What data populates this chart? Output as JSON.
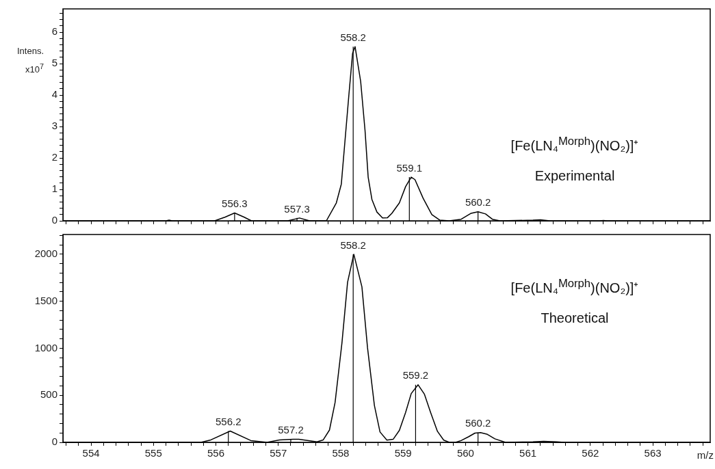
{
  "chart_data": [
    {
      "type": "line",
      "ylabel": "Intens. x10$^{7}$",
      "marker": "none",
      "line_style": "solid",
      "tick_labels": "y",
      "x": [
        553.55,
        555.2,
        555.25,
        555.3,
        555.98,
        556.15,
        556.3,
        556.45,
        556.57,
        557.15,
        557.34,
        557.5,
        557.77,
        557.93,
        558.01,
        558.13,
        558.19,
        558.23,
        558.32,
        558.39,
        558.44,
        558.5,
        558.58,
        558.67,
        558.75,
        558.82,
        558.94,
        559.04,
        559.13,
        559.19,
        559.32,
        559.46,
        559.59,
        559.74,
        559.93,
        560.09,
        560.2,
        560.32,
        560.43,
        560.55,
        561.08,
        561.2,
        561.35,
        562.15,
        562.21,
        562.27,
        563.92
      ],
      "series": [
        {
          "color": "#000000",
          "values": [
            0,
            0,
            0.02,
            0,
            0,
            0.12,
            0.25,
            0.12,
            0,
            0,
            0.09,
            0,
            0,
            0.57,
            1.17,
            3.98,
            5.32,
            5.54,
            4.43,
            2.87,
            1.39,
            0.68,
            0.28,
            0.09,
            0.1,
            0.24,
            0.57,
            1.09,
            1.39,
            1.31,
            0.72,
            0.2,
            0.02,
            0,
            0.05,
            0.24,
            0.29,
            0.22,
            0.05,
            0,
            0.02,
            0.03,
            0,
            0,
            0.01,
            0,
            0
          ]
        }
      ],
      "xlim": [
        553.55,
        563.92
      ],
      "xticks": [
        {
          "value": 553.6,
          "label": null
        },
        {
          "value": 553.8,
          "label": null
        },
        554,
        {
          "value": 554.2,
          "label": null
        },
        {
          "value": 554.4,
          "label": null
        },
        {
          "value": 554.6,
          "label": null
        },
        {
          "value": 554.8,
          "label": null
        },
        555,
        {
          "value": 555.2,
          "label": null
        },
        {
          "value": 555.4,
          "label": null
        },
        {
          "value": 555.6,
          "label": null
        },
        {
          "value": 555.8,
          "label": null
        },
        556,
        {
          "value": 556.2,
          "label": null
        },
        {
          "value": 556.4,
          "label": null
        },
        {
          "value": 556.6,
          "label": null
        },
        {
          "value": 556.8,
          "label": null
        },
        557,
        {
          "value": 557.2,
          "label": null
        },
        {
          "value": 557.4,
          "label": null
        },
        {
          "value": 557.6,
          "label": null
        },
        {
          "value": 557.8,
          "label": null
        },
        558,
        {
          "value": 558.2,
          "label": null
        },
        {
          "value": 558.4,
          "label": null
        },
        {
          "value": 558.6,
          "label": null
        },
        {
          "value": 558.8,
          "label": null
        },
        559,
        {
          "value": 559.2,
          "label": null
        },
        {
          "value": 559.4,
          "label": null
        },
        {
          "value": 559.6,
          "label": null
        },
        {
          "value": 559.8,
          "label": null
        },
        560,
        {
          "value": 560.2,
          "label": null
        },
        {
          "value": 560.4,
          "label": null
        },
        {
          "value": 560.6,
          "label": null
        },
        {
          "value": 560.8,
          "label": null
        },
        561,
        {
          "value": 561.2,
          "label": null
        },
        {
          "value": 561.4,
          "label": null
        },
        {
          "value": 561.6,
          "label": null
        },
        {
          "value": 561.8,
          "label": null
        },
        562,
        {
          "value": 562.2,
          "label": null
        },
        {
          "value": 562.4,
          "label": null
        },
        {
          "value": 562.6,
          "label": null
        },
        {
          "value": 562.8,
          "label": null
        },
        563,
        {
          "value": 563.2,
          "label": null
        },
        {
          "value": 563.4,
          "label": null
        },
        {
          "value": 563.6,
          "label": null
        },
        {
          "value": 563.8,
          "label": null
        }
      ],
      "ylim": [
        0,
        6.74
      ],
      "yticks": [
        0,
        {
          "value": 0.2,
          "label": null
        },
        {
          "value": 0.4,
          "label": null
        },
        {
          "value": 0.6,
          "label": null
        },
        {
          "value": 0.8,
          "label": null
        },
        1,
        {
          "value": 1.2,
          "label": null
        },
        {
          "value": 1.4,
          "label": null
        },
        {
          "value": 1.6,
          "label": null
        },
        {
          "value": 1.8,
          "label": null
        },
        2,
        {
          "value": 2.2,
          "label": null
        },
        {
          "value": 2.4,
          "label": null
        },
        {
          "value": 2.6,
          "label": null
        },
        {
          "value": 2.8,
          "label": null
        },
        3,
        {
          "value": 3.2,
          "label": null
        },
        {
          "value": 3.4,
          "label": null
        },
        {
          "value": 3.6,
          "label": null
        },
        {
          "value": 3.8,
          "label": null
        },
        4,
        {
          "value": 4.2,
          "label": null
        },
        {
          "value": 4.4,
          "label": null
        },
        {
          "value": 4.6,
          "label": null
        },
        {
          "value": 4.8,
          "label": null
        },
        5,
        {
          "value": 5.2,
          "label": null
        },
        {
          "value": 5.4,
          "label": null
        },
        {
          "value": 5.6,
          "label": null
        },
        {
          "value": 5.8,
          "label": null
        },
        6,
        {
          "value": 6.2,
          "label": null
        },
        {
          "value": 6.4,
          "label": null
        },
        {
          "value": 6.6,
          "label": null
        }
      ],
      "annotations": [
        {
          "text": "556.3",
          "x": 556.3,
          "y": 0.25
        },
        {
          "text": "557.3",
          "x": 557.3,
          "y": 0.09
        },
        {
          "text": "558.2",
          "x": 558.2,
          "y": 5.54
        },
        {
          "text": "559.1",
          "x": 559.1,
          "y": 1.39
        },
        {
          "text": "560.2",
          "x": 560.2,
          "y": 0.29
        },
        "[Fe(LN₄$^{Morph}$)(NO₂)]⁺",
        "Experimental"
      ]
    },
    {
      "type": "line",
      "xlabel": "m/z",
      "marker": "none",
      "line_style": "solid",
      "x": [
        553.55,
        555.76,
        555.92,
        556.23,
        556.56,
        556.82,
        557.02,
        557.24,
        557.33,
        557.62,
        557.72,
        557.82,
        557.91,
        558.02,
        558.11,
        558.21,
        558.34,
        558.43,
        558.54,
        558.63,
        558.74,
        558.84,
        558.94,
        559.04,
        559.13,
        559.24,
        559.34,
        559.44,
        559.55,
        559.65,
        559.74,
        559.84,
        559.93,
        560.05,
        560.15,
        560.24,
        560.35,
        560.47,
        560.64,
        561.08,
        561.25,
        561.46,
        561.58,
        563.92
      ],
      "series": [
        {
          "color": "#000000",
          "values": [
            0,
            0,
            26,
            120,
            19,
            0,
            26,
            33,
            33,
            5,
            26,
            131,
            424,
            1057,
            1702,
            2000,
            1653,
            1004,
            392,
            110,
            24,
            32,
            127,
            318,
            519,
            612,
            514,
            318,
            117,
            24,
            0,
            0,
            19,
            60,
            98,
            103,
            85,
            37,
            0,
            5,
            10,
            5,
            0,
            0
          ]
        }
      ],
      "xlim": [
        553.55,
        563.92
      ],
      "xticks": [
        {
          "value": 553.6,
          "label": null
        },
        {
          "value": 553.8,
          "label": null
        },
        554,
        {
          "value": 554.2,
          "label": null
        },
        {
          "value": 554.4,
          "label": null
        },
        {
          "value": 554.6,
          "label": null
        },
        {
          "value": 554.8,
          "label": null
        },
        555,
        {
          "value": 555.2,
          "label": null
        },
        {
          "value": 555.4,
          "label": null
        },
        {
          "value": 555.6,
          "label": null
        },
        {
          "value": 555.8,
          "label": null
        },
        556,
        {
          "value": 556.2,
          "label": null
        },
        {
          "value": 556.4,
          "label": null
        },
        {
          "value": 556.6,
          "label": null
        },
        {
          "value": 556.8,
          "label": null
        },
        557,
        {
          "value": 557.2,
          "label": null
        },
        {
          "value": 557.4,
          "label": null
        },
        {
          "value": 557.6,
          "label": null
        },
        {
          "value": 557.8,
          "label": null
        },
        558,
        {
          "value": 558.2,
          "label": null
        },
        {
          "value": 558.4,
          "label": null
        },
        {
          "value": 558.6,
          "label": null
        },
        {
          "value": 558.8,
          "label": null
        },
        559,
        {
          "value": 559.2,
          "label": null
        },
        {
          "value": 559.4,
          "label": null
        },
        {
          "value": 559.6,
          "label": null
        },
        {
          "value": 559.8,
          "label": null
        },
        560,
        {
          "value": 560.2,
          "label": null
        },
        {
          "value": 560.4,
          "label": null
        },
        {
          "value": 560.6,
          "label": null
        },
        {
          "value": 560.8,
          "label": null
        },
        561,
        {
          "value": 561.2,
          "label": null
        },
        {
          "value": 561.4,
          "label": null
        },
        {
          "value": 561.6,
          "label": null
        },
        {
          "value": 561.8,
          "label": null
        },
        562,
        {
          "value": 562.2,
          "label": null
        },
        {
          "value": 562.4,
          "label": null
        },
        {
          "value": 562.6,
          "label": null
        },
        {
          "value": 562.8,
          "label": null
        },
        563,
        {
          "value": 563.2,
          "label": null
        },
        {
          "value": 563.4,
          "label": null
        },
        {
          "value": 563.6,
          "label": null
        },
        {
          "value": 563.8,
          "label": null
        }
      ],
      "ylim": [
        0,
        2210
      ],
      "yticks": [
        0,
        {
          "value": 100,
          "label": null
        },
        {
          "value": 200,
          "label": null
        },
        {
          "value": 300,
          "label": null
        },
        {
          "value": 400,
          "label": null
        },
        500,
        {
          "value": 600,
          "label": null
        },
        {
          "value": 700,
          "label": null
        },
        {
          "value": 800,
          "label": null
        },
        {
          "value": 900,
          "label": null
        },
        1000,
        {
          "value": 1100,
          "label": null
        },
        {
          "value": 1200,
          "label": null
        },
        {
          "value": 1300,
          "label": null
        },
        {
          "value": 1400,
          "label": null
        },
        1500,
        {
          "value": 1600,
          "label": null
        },
        {
          "value": 1700,
          "label": null
        },
        {
          "value": 1800,
          "label": null
        },
        {
          "value": 1900,
          "label": null
        },
        2000,
        {
          "value": 2100,
          "label": null
        },
        {
          "value": 2200,
          "label": null
        }
      ],
      "annotations": [
        {
          "text": "556.2",
          "x": 556.2,
          "y": 120
        },
        {
          "text": "557.2",
          "x": 557.2,
          "y": 33
        },
        {
          "text": "558.2",
          "x": 558.2,
          "y": 2000
        },
        {
          "text": "559.2",
          "x": 559.2,
          "y": 612
        },
        {
          "text": "560.2",
          "x": 560.2,
          "y": 103
        },
        "[Fe(LN₄$^{Morph}$)(NO₂)]⁺",
        "Theoretical"
      ]
    }
  ]
}
